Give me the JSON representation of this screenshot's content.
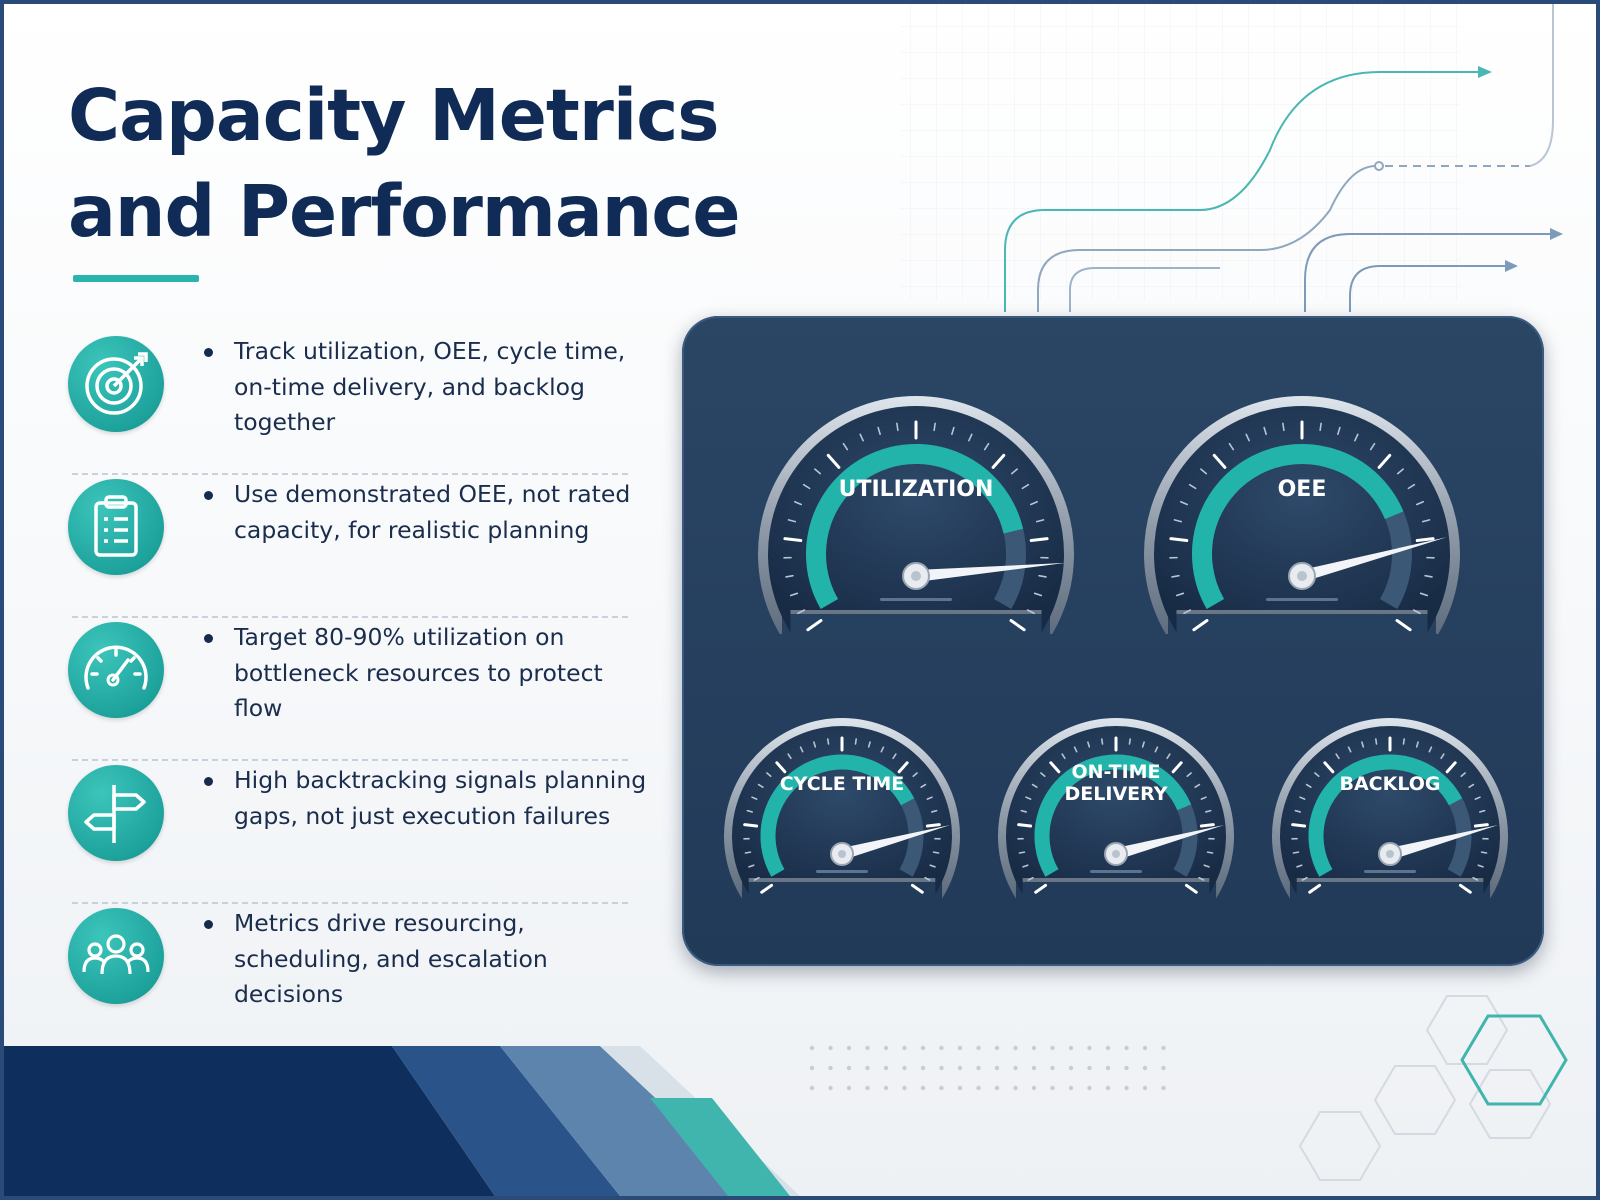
{
  "title": {
    "line1": "Capacity Metrics",
    "line2": "and Performance"
  },
  "bullets": [
    {
      "icon": "target-icon",
      "text": "Track utilization, OEE, cycle time, on-time delivery, and backlog together"
    },
    {
      "icon": "clipboard-icon",
      "text": "Use demonstrated OEE, not rated capacity, for realistic planning"
    },
    {
      "icon": "speedometer-icon",
      "text": "Target 80-90% utilization on bottleneck resources to protect flow"
    },
    {
      "icon": "signpost-icon",
      "text": "High backtracking signals planning gaps, not just execution failures"
    },
    {
      "icon": "team-icon",
      "text": "Metrics drive resourcing, scheduling, and escalation decisions"
    }
  ],
  "gauges": [
    {
      "label_lines": [
        "UTILIZATION"
      ],
      "level": 0.82,
      "needle": 0.84
    },
    {
      "label_lines": [
        "OEE"
      ],
      "level": 0.78,
      "needle": 0.8
    },
    {
      "label_lines": [
        "CYCLE TIME"
      ],
      "level": 0.76,
      "needle": 0.8
    },
    {
      "label_lines": [
        "ON-TIME",
        "DELIVERY"
      ],
      "level": 0.78,
      "needle": 0.8
    },
    {
      "label_lines": [
        "BACKLOG"
      ],
      "level": 0.76,
      "needle": 0.8
    }
  ],
  "colors": {
    "title": "#0f2b56",
    "accent": "#2bb3ad",
    "panel": "#243d5c",
    "gauge_arc": "#22b3aa"
  }
}
